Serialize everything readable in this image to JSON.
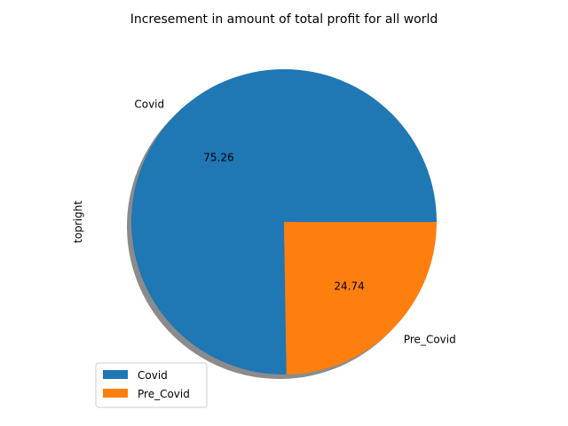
{
  "chart_data": {
    "type": "pie",
    "title": "Incresement in amount of total profit for all world",
    "ylabel": "topright",
    "shadow": true,
    "start_angle_deg": 0,
    "direction": "counterclockwise",
    "slices": [
      {
        "label": "Covid",
        "value": 75.26,
        "pct_label": "75.26",
        "color": "#1f77b4"
      },
      {
        "label": "Pre_Covid",
        "value": 24.74,
        "pct_label": "24.74",
        "color": "#ff7f0e"
      }
    ],
    "legend": {
      "placement": "lower-left",
      "entries": [
        {
          "label": "Covid",
          "color": "#1f77b4"
        },
        {
          "label": "Pre_Covid",
          "color": "#ff7f0e"
        }
      ]
    }
  }
}
